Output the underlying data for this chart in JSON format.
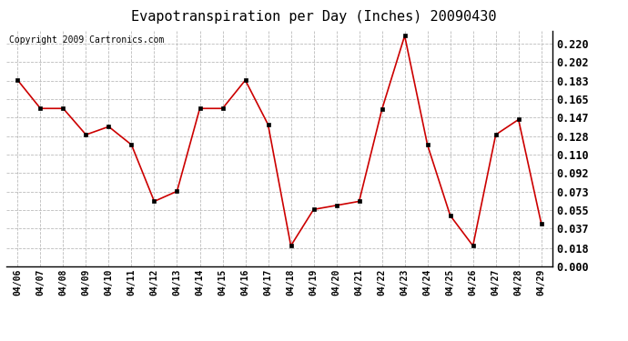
{
  "title": "Evapotranspiration per Day (Inches) 20090430",
  "copyright": "Copyright 2009 Cartronics.com",
  "x_labels": [
    "04/06",
    "04/07",
    "04/08",
    "04/09",
    "04/10",
    "04/11",
    "04/12",
    "04/13",
    "04/14",
    "04/15",
    "04/16",
    "04/17",
    "04/18",
    "04/19",
    "04/20",
    "04/21",
    "04/22",
    "04/23",
    "04/24",
    "04/25",
    "04/26",
    "04/27",
    "04/28",
    "04/29"
  ],
  "y_values": [
    0.184,
    0.156,
    0.156,
    0.13,
    0.138,
    0.12,
    0.064,
    0.074,
    0.156,
    0.156,
    0.184,
    0.14,
    0.02,
    0.056,
    0.06,
    0.064,
    0.155,
    0.228,
    0.12,
    0.05,
    0.02,
    0.13,
    0.145,
    0.042
  ],
  "y_ticks": [
    0.0,
    0.018,
    0.037,
    0.055,
    0.073,
    0.092,
    0.11,
    0.128,
    0.147,
    0.165,
    0.183,
    0.202,
    0.22
  ],
  "line_color": "#cc0000",
  "marker": "s",
  "marker_size": 3,
  "background_color": "#ffffff",
  "grid_color": "#bbbbbb",
  "ylim": [
    0.0,
    0.233
  ],
  "title_fontsize": 11,
  "copyright_fontsize": 7,
  "tick_fontsize": 8.5,
  "x_tick_fontsize": 7
}
